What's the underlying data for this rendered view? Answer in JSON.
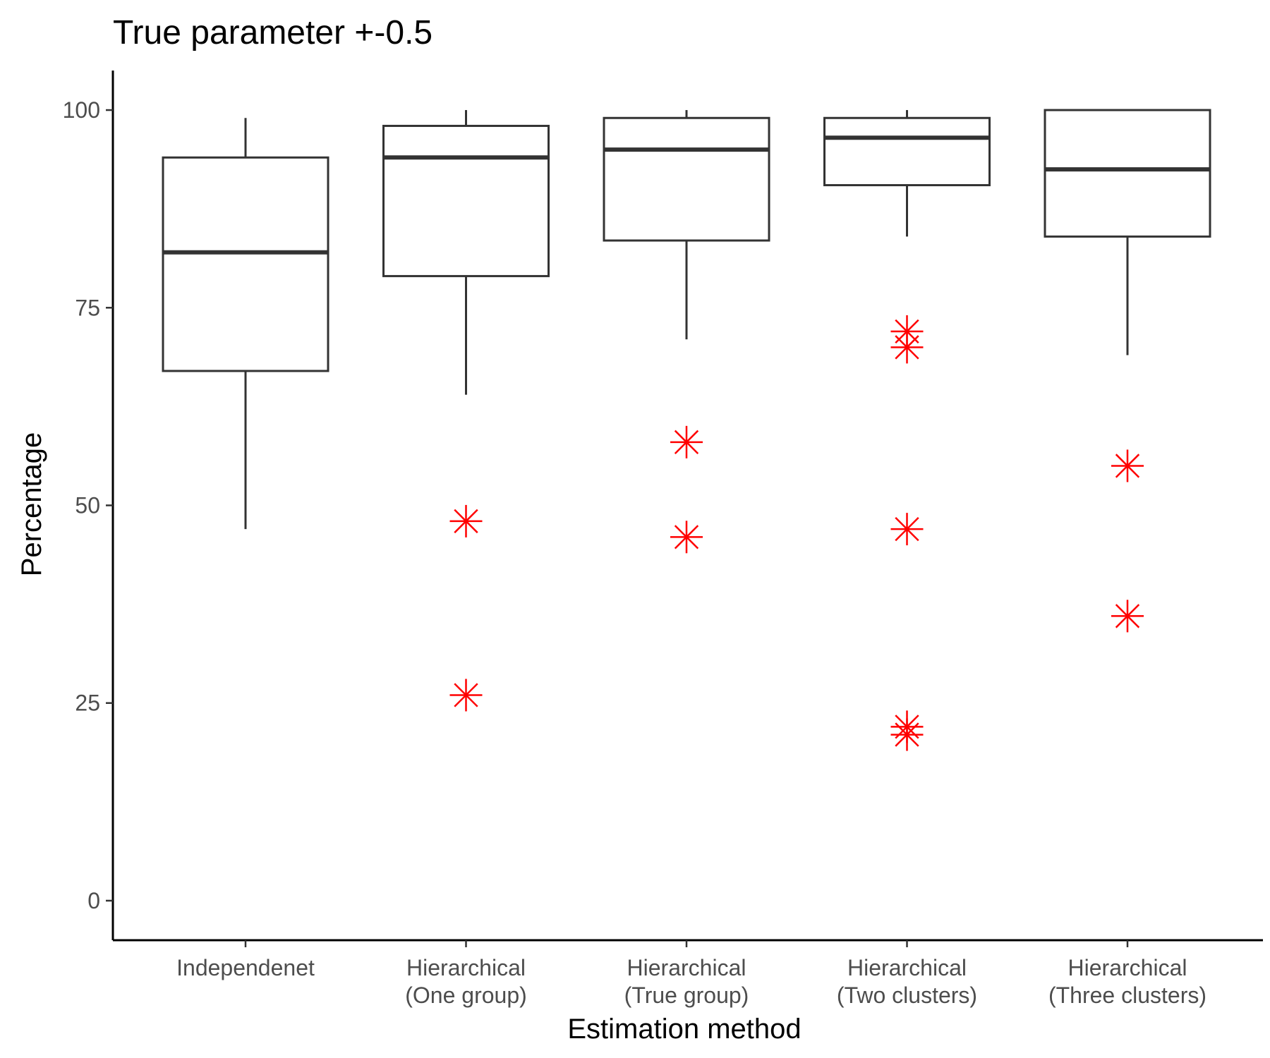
{
  "chart_data": {
    "type": "boxplot",
    "title": "True parameter +-0.5",
    "xlabel": "Estimation method",
    "ylabel": "Percentage",
    "ylim": [
      -5,
      105
    ],
    "yticks": [
      0,
      25,
      50,
      75,
      100
    ],
    "ytick_labels": [
      "0",
      "25",
      "50",
      "75",
      "100"
    ],
    "grid": false,
    "outlier_color": "#ff0000",
    "box_color": "#333333",
    "categories": [
      {
        "label_lines": [
          "Independenet"
        ],
        "whisker_low": 47,
        "q1": 67,
        "median": 82,
        "q3": 94,
        "whisker_high": 99,
        "outliers": []
      },
      {
        "label_lines": [
          "Hierarchical",
          "(One group)"
        ],
        "whisker_low": 64,
        "q1": 79,
        "median": 94,
        "q3": 98,
        "whisker_high": 100,
        "outliers": [
          48,
          26
        ]
      },
      {
        "label_lines": [
          "Hierarchical",
          "(True group)"
        ],
        "whisker_low": 71,
        "q1": 83.5,
        "median": 95,
        "q3": 99,
        "whisker_high": 100,
        "outliers": [
          58,
          46
        ]
      },
      {
        "label_lines": [
          "Hierarchical",
          "(Two clusters)"
        ],
        "whisker_low": 84,
        "q1": 90.5,
        "median": 96.5,
        "q3": 99,
        "whisker_high": 100,
        "outliers": [
          72,
          70,
          47,
          22,
          21
        ]
      },
      {
        "label_lines": [
          "Hierarchical",
          "(Three clusters)"
        ],
        "whisker_low": 69,
        "q1": 84,
        "median": 92.5,
        "q3": 100,
        "whisker_high": 100,
        "outliers": [
          55,
          36
        ]
      }
    ]
  }
}
